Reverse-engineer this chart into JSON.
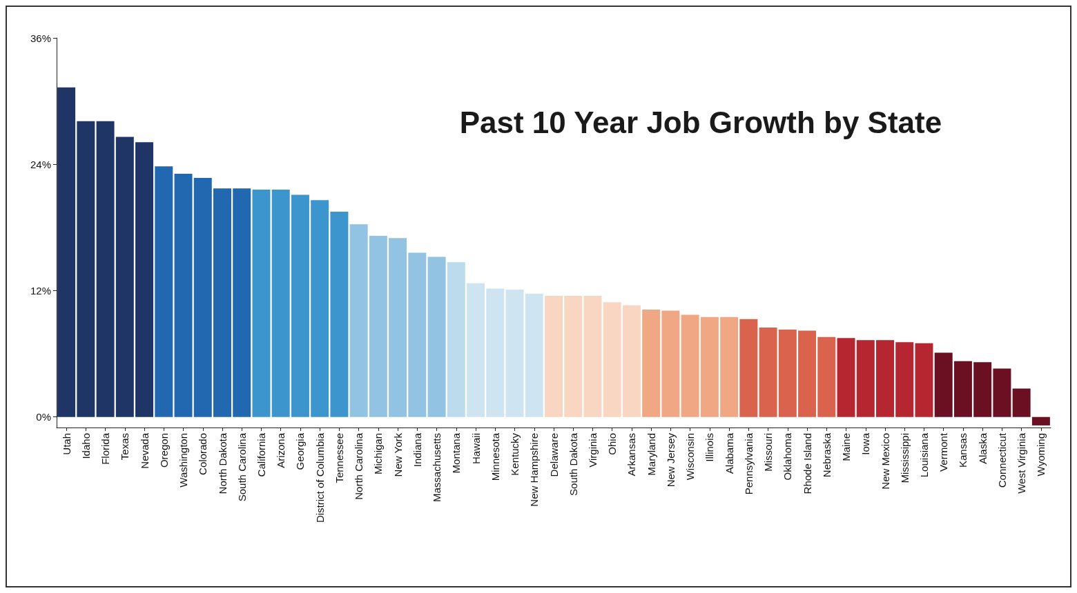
{
  "chart_data": {
    "type": "bar",
    "title": "Past 10 Year Job Growth by State",
    "categories": [
      "Utah",
      "Idaho",
      "Florida",
      "Texas",
      "Nevada",
      "Oregon",
      "Washington",
      "Colorado",
      "North Dakota",
      "South Carolina",
      "California",
      "Arizona",
      "Georgia",
      "District of Columbia",
      "Tennessee",
      "North Carolina",
      "Michigan",
      "New York",
      "Indiana",
      "Massachusetts",
      "Montana",
      "Hawaii",
      "Minnesota",
      "Kentucky",
      "New Hampshire",
      "Delaware",
      "South Dakota",
      "Virginia",
      "Ohio",
      "Arkansas",
      "Maryland",
      "New Jersey",
      "Wisconsin",
      "Illinois",
      "Alabama",
      "Pennsylvania",
      "Missouri",
      "Oklahoma",
      "Rhode Island",
      "Nebraska",
      "Maine",
      "Iowa",
      "New Mexico",
      "Mississippi",
      "Louisiana",
      "Vermont",
      "Kansas",
      "Alaska",
      "Connecticut",
      "West Virginia",
      "Wyoming"
    ],
    "values": [
      31.3,
      28.1,
      28.1,
      26.6,
      26.1,
      23.8,
      23.1,
      22.7,
      21.7,
      21.7,
      21.6,
      21.6,
      21.1,
      20.6,
      19.5,
      18.3,
      17.2,
      17.0,
      15.6,
      15.2,
      14.7,
      12.7,
      12.2,
      12.1,
      11.7,
      11.5,
      11.5,
      11.5,
      10.9,
      10.6,
      10.2,
      10.1,
      9.7,
      9.5,
      9.5,
      9.3,
      8.5,
      8.3,
      8.2,
      7.6,
      7.5,
      7.3,
      7.3,
      7.1,
      7.0,
      6.1,
      5.3,
      5.2,
      4.6,
      2.7,
      -0.8
    ],
    "colors": [
      "#1f3566",
      "#1f3566",
      "#1f3566",
      "#1f3566",
      "#1f3566",
      "#2268b0",
      "#2268b0",
      "#2268b0",
      "#2268b0",
      "#2268b0",
      "#3d95cd",
      "#3d95cd",
      "#3d95cd",
      "#3d95cd",
      "#3d95cd",
      "#92c3e2",
      "#92c3e2",
      "#92c3e2",
      "#92c3e2",
      "#92c3e2",
      "#bcdcee",
      "#cfe4f1",
      "#cfe4f1",
      "#cfe4f1",
      "#cfe4f1",
      "#f9d6c2",
      "#f9d6c2",
      "#f9d6c2",
      "#f9d6c2",
      "#f9d6c2",
      "#f0a884",
      "#f0a884",
      "#f0a884",
      "#f0a884",
      "#f0a884",
      "#d9634c",
      "#d9634c",
      "#d9634c",
      "#d9634c",
      "#d9634c",
      "#b52630",
      "#b52630",
      "#b52630",
      "#b52630",
      "#b52630",
      "#6b0f22",
      "#6b0f22",
      "#6b0f22",
      "#6b0f22",
      "#6b0f22",
      "#6b0f22"
    ],
    "ylim": [
      -1,
      36
    ],
    "yticks": [
      {
        "value": 0,
        "label": "0%"
      },
      {
        "value": 12,
        "label": "12%"
      },
      {
        "value": 24,
        "label": "24%"
      },
      {
        "value": 36,
        "label": "36%"
      }
    ],
    "grid": false
  }
}
